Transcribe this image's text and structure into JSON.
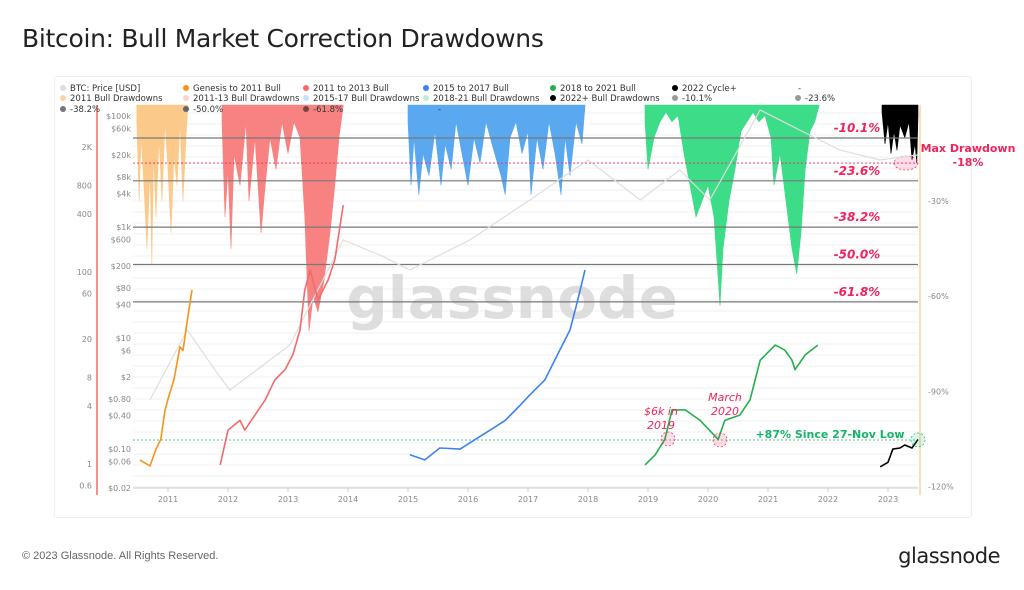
{
  "title": "Bitcoin: Bull Market Correction Drawdowns",
  "footer": "© 2023 Glassnode. All Rights Reserved.",
  "logo": "glassnode",
  "watermark": "glassnode",
  "chart_data": {
    "type": "line",
    "title": "Bitcoin: Bull Market Correction Drawdowns",
    "x_axis": {
      "type": "date",
      "ticks": [
        "2011",
        "2012",
        "2013",
        "2014",
        "2015",
        "2016",
        "2017",
        "2018",
        "2019",
        "2020",
        "2021",
        "2022",
        "2023"
      ],
      "range": [
        2010.45,
        2023.55
      ]
    },
    "y_axis_price": {
      "scale": "log",
      "ticks": [
        "$100k",
        "$60k",
        "$20k",
        "$8k",
        "$4k",
        "$1k",
        "$600",
        "$200",
        "$80",
        "$40",
        "$10",
        "$6",
        "$2",
        "$0.80",
        "$0.40",
        "$0.10",
        "$0.06",
        "$0.02"
      ],
      "tick_values": [
        100000,
        60000,
        20000,
        8000,
        4000,
        1000,
        600,
        200,
        80,
        40,
        10,
        6,
        2,
        0.8,
        0.4,
        0.1,
        0.06,
        0.02
      ]
    },
    "y_axis_secondary": {
      "scale": "log",
      "ticks": [
        "2K",
        "800",
        "400",
        "100",
        "60",
        "20",
        "8",
        "4",
        "1",
        "0.6"
      ],
      "tick_values": [
        2000,
        800,
        400,
        100,
        60,
        20,
        8,
        4,
        1,
        0.6
      ]
    },
    "y_axis_drawdown": {
      "ticks": [
        "-30%",
        "-60%",
        "-90%",
        "-120%"
      ],
      "tick_values": [
        -30,
        -60,
        -90,
        -120
      ],
      "range": [
        0,
        -120
      ]
    },
    "grid": true,
    "legend_placement": "top",
    "legend": [
      [
        {
          "label": "BTC: Price [USD]",
          "color": "#dedede"
        },
        {
          "label": "Genesis to 2011 Bull",
          "color": "#f7931a"
        },
        {
          "label": "2011 to 2013 Bull",
          "color": "#f26b6b"
        },
        {
          "label": "2015 to 2017 Bull",
          "color": "#3d82f0"
        },
        {
          "label": "2018 to 2021 Bull",
          "color": "#22b04a"
        },
        {
          "label": "2022 Cycle+",
          "color": "#000000"
        },
        {
          "label": "-",
          "color": ""
        }
      ],
      [
        {
          "label": "2011 Bull Drawdowns",
          "color": "#fcd3a3"
        },
        {
          "label": "2011-13 Bull Drawdowns",
          "color": "#fcd2d2"
        },
        {
          "label": "2015-17 Bull Drawdowns",
          "color": "#c6e1fb"
        },
        {
          "label": "2018-21 Bull Drawdowns",
          "color": "#bdeed3"
        },
        {
          "label": "2022+ Bull Drawdowns",
          "color": "#000000"
        },
        {
          "label": "-10.1%",
          "color": "#999999"
        },
        {
          "label": "-23.6%",
          "color": "#999999"
        }
      ],
      [
        {
          "label": "-38.2%",
          "color": "#777777"
        },
        {
          "label": "-50.0%",
          "color": "#666666"
        },
        {
          "label": "-61.8%",
          "color": "#774444"
        },
        {
          "label": "-",
          "color": ""
        }
      ]
    ],
    "levels": [
      {
        "value": -10.1,
        "label": "-10.1%"
      },
      {
        "value": -23.6,
        "label": "-23.6%"
      },
      {
        "value": -38.2,
        "label": "-38.2%"
      },
      {
        "value": -50.0,
        "label": "-50.0%"
      },
      {
        "value": -61.8,
        "label": "-61.8%"
      }
    ],
    "max_drawdown": {
      "value": -18,
      "line1": "Max Drawdown",
      "line2": "-18%",
      "color": "#f0245c"
    },
    "annotations": [
      {
        "line1": "$6k in",
        "line2": "2019",
        "x": 2019.35
      },
      {
        "line1": "March",
        "line2": "2020",
        "x": 2020.2
      }
    ],
    "recovery": {
      "label": "+87% Since 27-Nov Low",
      "color": "#16b56a"
    },
    "price_series": [
      {
        "name": "BTC: Price [USD]",
        "color": "#dedede",
        "points": [
          [
            2010.7,
            0.77
          ],
          [
            2011.32,
            14
          ],
          [
            2011.78,
            2.7
          ],
          [
            2012.03,
            1.16
          ],
          [
            2013.03,
            7.5
          ],
          [
            2013.92,
            586
          ],
          [
            2014.53,
            315
          ],
          [
            2015.03,
            169
          ],
          [
            2016.03,
            586
          ],
          [
            2017.03,
            3085
          ],
          [
            2018.0,
            16200
          ],
          [
            2018.87,
            3085
          ],
          [
            2019.53,
            10700
          ],
          [
            2020.03,
            3085
          ],
          [
            2020.87,
            129000
          ],
          [
            2021.53,
            56000
          ],
          [
            2022.2,
            24500
          ],
          [
            2022.87,
            16200
          ],
          [
            2023.5,
            20000
          ]
        ]
      },
      {
        "name": "Genesis to 2011 Bull",
        "color": "#f7931a",
        "points": [
          [
            2010.53,
            0.064
          ],
          [
            2010.7,
            0.05
          ],
          [
            2010.8,
            0.1
          ],
          [
            2010.88,
            0.15
          ],
          [
            2010.95,
            0.5
          ],
          [
            2011.0,
            0.8
          ],
          [
            2011.1,
            1.8
          ],
          [
            2011.2,
            7
          ],
          [
            2011.25,
            6
          ],
          [
            2011.32,
            20
          ],
          [
            2011.4,
            74
          ]
        ]
      },
      {
        "name": "2011 to 2013 Bull",
        "color": "#f26b6b",
        "points": [
          [
            2011.87,
            0.052
          ],
          [
            2012.0,
            0.22
          ],
          [
            2012.2,
            0.33
          ],
          [
            2012.28,
            0.22
          ],
          [
            2012.62,
            0.77
          ],
          [
            2012.78,
            1.76
          ],
          [
            2012.95,
            2.7
          ],
          [
            2013.08,
            5
          ],
          [
            2013.2,
            14
          ],
          [
            2013.28,
            74
          ],
          [
            2013.37,
            169
          ],
          [
            2013.5,
            49
          ],
          [
            2013.67,
            112
          ],
          [
            2013.78,
            256
          ],
          [
            2013.92,
            2500
          ]
        ]
      },
      {
        "name": "2015 to 2017 Bull",
        "color": "#3d82f0",
        "points": [
          [
            2015.03,
            0.079
          ],
          [
            2015.28,
            0.064
          ],
          [
            2015.53,
            0.105
          ],
          [
            2015.87,
            0.1
          ],
          [
            2016.12,
            0.15
          ],
          [
            2016.37,
            0.22
          ],
          [
            2016.62,
            0.33
          ],
          [
            2016.87,
            0.62
          ],
          [
            2017.03,
            0.95
          ],
          [
            2017.28,
            1.76
          ],
          [
            2017.53,
            6.1
          ],
          [
            2017.7,
            14
          ],
          [
            2017.83,
            49
          ],
          [
            2017.95,
            169
          ]
        ]
      },
      {
        "name": "2018 to 2021 Bull",
        "color": "#22b04a",
        "points": [
          [
            2018.95,
            0.052
          ],
          [
            2019.12,
            0.079
          ],
          [
            2019.28,
            0.15
          ],
          [
            2019.4,
            0.51
          ],
          [
            2019.62,
            0.51
          ],
          [
            2019.87,
            0.33
          ],
          [
            2020.17,
            0.15
          ],
          [
            2020.28,
            0.33
          ],
          [
            2020.53,
            0.41
          ],
          [
            2020.7,
            0.77
          ],
          [
            2020.87,
            4
          ],
          [
            2021.12,
            7.5
          ],
          [
            2021.28,
            6.1
          ],
          [
            2021.4,
            4
          ],
          [
            2021.45,
            2.7
          ],
          [
            2021.62,
            5
          ],
          [
            2021.83,
            7.5
          ]
        ]
      },
      {
        "name": "2022 Cycle+",
        "color": "#000000",
        "points": [
          [
            2022.87,
            0.048
          ],
          [
            2023.0,
            0.058
          ],
          [
            2023.08,
            0.1
          ],
          [
            2023.2,
            0.105
          ],
          [
            2023.28,
            0.119
          ],
          [
            2023.4,
            0.105
          ],
          [
            2023.5,
            0.15
          ]
        ]
      }
    ],
    "drawdown_series": [
      {
        "name": "2011 Bull Drawdowns",
        "color": "#fbc98a",
        "points": [
          [
            2010.48,
            -5
          ],
          [
            2010.52,
            -30
          ],
          [
            2010.55,
            -10
          ],
          [
            2010.6,
            -25
          ],
          [
            2010.65,
            -45
          ],
          [
            2010.7,
            -20
          ],
          [
            2010.73,
            -50
          ],
          [
            2010.76,
            -15
          ],
          [
            2010.8,
            -35
          ],
          [
            2010.85,
            -10
          ],
          [
            2010.9,
            -30
          ],
          [
            2010.95,
            -5
          ],
          [
            2011.0,
            -20
          ],
          [
            2011.05,
            -40
          ],
          [
            2011.1,
            -15
          ],
          [
            2011.15,
            -25
          ],
          [
            2011.2,
            -5
          ],
          [
            2011.25,
            -30
          ],
          [
            2011.3,
            -10
          ],
          [
            2011.33,
            0
          ]
        ]
      },
      {
        "name": "2011-13 Bull Drawdowns",
        "color": "#f88282",
        "points": [
          [
            2011.9,
            -5
          ],
          [
            2011.95,
            -35
          ],
          [
            2012.0,
            -20
          ],
          [
            2012.05,
            -45
          ],
          [
            2012.1,
            -15
          ],
          [
            2012.2,
            -25
          ],
          [
            2012.3,
            -5
          ],
          [
            2012.35,
            -30
          ],
          [
            2012.45,
            -10
          ],
          [
            2012.55,
            -40
          ],
          [
            2012.62,
            -25
          ],
          [
            2012.7,
            -10
          ],
          [
            2012.8,
            -20
          ],
          [
            2012.9,
            -5
          ],
          [
            2013.0,
            -15
          ],
          [
            2013.1,
            -5
          ],
          [
            2013.2,
            -10
          ],
          [
            2013.28,
            -35
          ],
          [
            2013.35,
            -71
          ],
          [
            2013.42,
            -60
          ],
          [
            2013.5,
            -65
          ],
          [
            2013.6,
            -55
          ],
          [
            2013.7,
            -40
          ],
          [
            2013.78,
            -25
          ],
          [
            2013.85,
            -10
          ],
          [
            2013.92,
            0
          ]
        ]
      },
      {
        "name": "2015-17 Bull Drawdowns",
        "color": "#5aa9f0",
        "points": [
          [
            2015.0,
            -5
          ],
          [
            2015.05,
            -25
          ],
          [
            2015.1,
            -10
          ],
          [
            2015.18,
            -28
          ],
          [
            2015.25,
            -15
          ],
          [
            2015.35,
            -22
          ],
          [
            2015.45,
            -8
          ],
          [
            2015.55,
            -25
          ],
          [
            2015.62,
            -12
          ],
          [
            2015.72,
            -20
          ],
          [
            2015.8,
            -5
          ],
          [
            2015.9,
            -15
          ],
          [
            2016.0,
            -25
          ],
          [
            2016.1,
            -10
          ],
          [
            2016.2,
            -18
          ],
          [
            2016.3,
            -5
          ],
          [
            2016.4,
            -12
          ],
          [
            2016.55,
            -22
          ],
          [
            2016.62,
            -28
          ],
          [
            2016.7,
            -10
          ],
          [
            2016.8,
            -5
          ],
          [
            2016.9,
            -15
          ],
          [
            2017.0,
            -8
          ],
          [
            2017.05,
            -28
          ],
          [
            2017.15,
            -10
          ],
          [
            2017.25,
            -20
          ],
          [
            2017.35,
            -5
          ],
          [
            2017.45,
            -15
          ],
          [
            2017.55,
            -28
          ],
          [
            2017.62,
            -10
          ],
          [
            2017.7,
            -22
          ],
          [
            2017.8,
            -5
          ],
          [
            2017.9,
            -12
          ],
          [
            2017.95,
            0
          ]
        ]
      },
      {
        "name": "2018-21 Bull Drawdowns",
        "color": "#3ddc88",
        "points": [
          [
            2018.95,
            -5
          ],
          [
            2019.0,
            -20
          ],
          [
            2019.1,
            -10
          ],
          [
            2019.2,
            -5
          ],
          [
            2019.3,
            -2
          ],
          [
            2019.4,
            -5
          ],
          [
            2019.5,
            -3
          ],
          [
            2019.6,
            -15
          ],
          [
            2019.7,
            -25
          ],
          [
            2019.8,
            -35
          ],
          [
            2019.9,
            -30
          ],
          [
            2020.0,
            -25
          ],
          [
            2020.1,
            -35
          ],
          [
            2020.2,
            -63
          ],
          [
            2020.25,
            -45
          ],
          [
            2020.35,
            -30
          ],
          [
            2020.45,
            -20
          ],
          [
            2020.55,
            -8
          ],
          [
            2020.65,
            -5
          ],
          [
            2020.75,
            -2
          ],
          [
            2020.85,
            -5
          ],
          [
            2020.95,
            -3
          ],
          [
            2021.05,
            -10
          ],
          [
            2021.1,
            -25
          ],
          [
            2021.2,
            -15
          ],
          [
            2021.3,
            -30
          ],
          [
            2021.4,
            -45
          ],
          [
            2021.48,
            -53
          ],
          [
            2021.55,
            -40
          ],
          [
            2021.62,
            -20
          ],
          [
            2021.7,
            -8
          ],
          [
            2021.78,
            -5
          ],
          [
            2021.85,
            0
          ]
        ]
      },
      {
        "name": "2022+ Bull Drawdowns",
        "color": "#000000",
        "points": [
          [
            2022.9,
            -2
          ],
          [
            2022.95,
            -12
          ],
          [
            2023.0,
            -5
          ],
          [
            2023.05,
            -15
          ],
          [
            2023.1,
            -8
          ],
          [
            2023.15,
            -14
          ],
          [
            2023.2,
            -6
          ],
          [
            2023.28,
            -10
          ],
          [
            2023.35,
            -5
          ],
          [
            2023.4,
            -17
          ],
          [
            2023.45,
            -12
          ],
          [
            2023.48,
            -18
          ],
          [
            2023.5,
            -3
          ]
        ]
      }
    ]
  }
}
